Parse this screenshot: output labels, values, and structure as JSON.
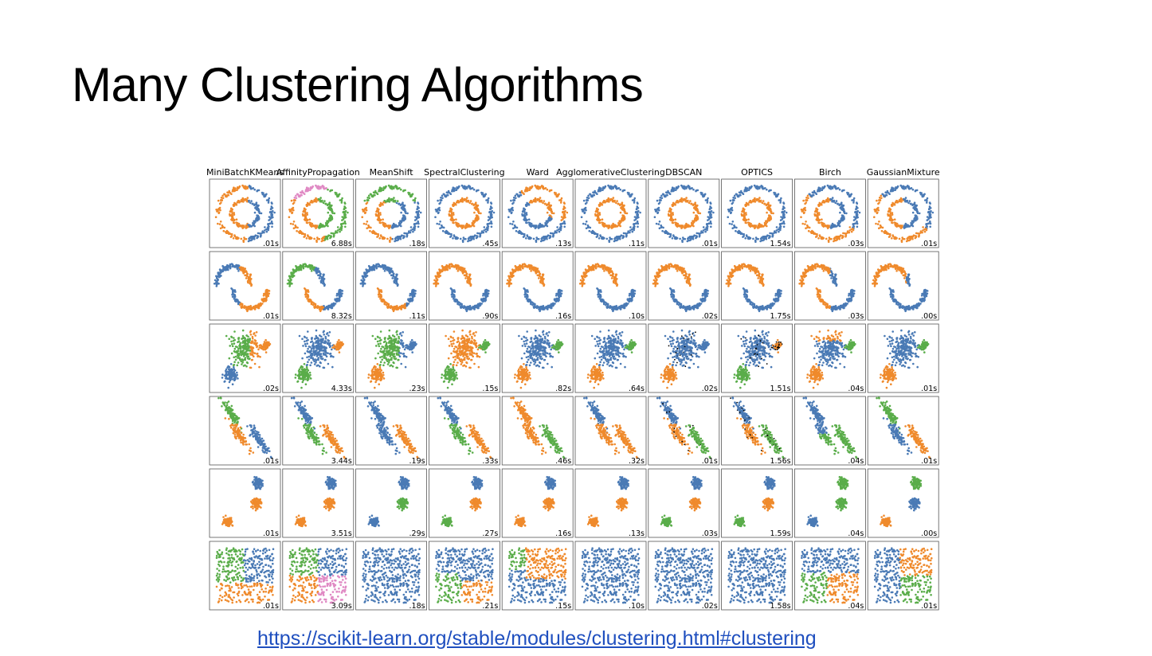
{
  "slide": {
    "title": "Many Clustering Algorithms",
    "link": "https://scikit-learn.org/stable/modules/clustering.html#clustering"
  },
  "colors": {
    "blue": "#4a7ab5",
    "orange": "#ef8a2c",
    "green": "#5aad4a",
    "pink": "#e08ac4",
    "black": "#000000"
  },
  "chart_data": {
    "type": "scatter",
    "algorithms": [
      "MiniBatchKMeans",
      "AffinityPropagation",
      "MeanShift",
      "SpectralClustering",
      "Ward",
      "AgglomerativeClustering",
      "DBSCAN",
      "OPTICS",
      "Birch",
      "GaussianMixture"
    ],
    "datasets": [
      "noisy_circles",
      "noisy_moons",
      "varied",
      "aniso",
      "blobs",
      "no_structure"
    ],
    "times": [
      [
        ".01s",
        "6.88s",
        ".18s",
        ".45s",
        ".13s",
        ".11s",
        ".01s",
        "1.54s",
        ".03s",
        ".01s"
      ],
      [
        ".01s",
        "8.32s",
        ".11s",
        ".90s",
        ".16s",
        ".10s",
        ".02s",
        "1.75s",
        ".03s",
        ".00s"
      ],
      [
        ".02s",
        "4.33s",
        ".23s",
        ".15s",
        ".82s",
        ".64s",
        ".02s",
        "1.51s",
        ".04s",
        ".01s"
      ],
      [
        ".01s",
        "3.44s",
        ".19s",
        ".33s",
        ".46s",
        ".32s",
        ".01s",
        "1.56s",
        ".04s",
        ".01s"
      ],
      [
        ".01s",
        "3.51s",
        ".29s",
        ".27s",
        ".16s",
        ".13s",
        ".03s",
        "1.59s",
        ".04s",
        ".00s"
      ],
      [
        ".01s",
        "3.09s",
        ".18s",
        ".21s",
        ".15s",
        ".10s",
        ".02s",
        "1.58s",
        ".04s",
        ".01s"
      ]
    ],
    "grid": false
  }
}
